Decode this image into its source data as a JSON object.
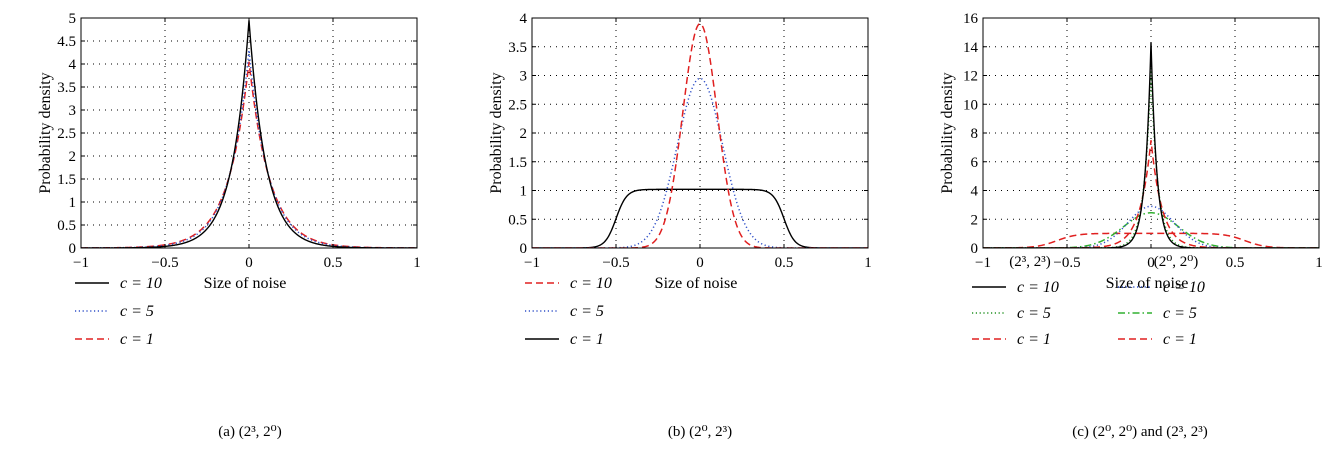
{
  "chart_data": [
    {
      "type": "line",
      "caption": "(a)  (2³, 2⁰)",
      "xlabel": "Size of noise",
      "ylabel": "Probability density",
      "xlim": [
        -1,
        1
      ],
      "ylim": [
        0,
        5
      ],
      "xticks": [
        -1,
        -0.5,
        0,
        0.5,
        1
      ],
      "xtick_labels": [
        "−1",
        "−0.5",
        "0",
        "0.5",
        "1"
      ],
      "yticks": [
        0,
        0.5,
        1,
        1.5,
        2,
        2.5,
        3,
        3.5,
        4,
        4.5,
        5
      ],
      "ytick_labels": [
        "0",
        "0.5",
        "1",
        "1.5",
        "2",
        "2.5",
        "3",
        "3.5",
        "4",
        "4.5",
        "5"
      ],
      "grid": true,
      "legend_position": "below",
      "series": [
        {
          "name": "c = 10",
          "color": "#000000",
          "style": "solid",
          "shape": "laplace",
          "peak": 4.95,
          "scale": 0.101
        },
        {
          "name": "c = 5",
          "color": "#3050c8",
          "style": "dotted",
          "shape": "laplace",
          "peak": 4.3,
          "scale": 0.116
        },
        {
          "name": "c = 1",
          "color": "#e02020",
          "style": "dashed",
          "shape": "laplace",
          "peak": 4.05,
          "scale": 0.123
        }
      ]
    },
    {
      "type": "line",
      "caption": "(b)  (2⁰, 2³)",
      "xlabel": "Size of noise",
      "ylabel": "Probability density",
      "xlim": [
        -1,
        1
      ],
      "ylim": [
        0,
        4
      ],
      "xticks": [
        -1,
        -0.5,
        0,
        0.5,
        1
      ],
      "xtick_labels": [
        "−1",
        "−0.5",
        "0",
        "0.5",
        "1"
      ],
      "yticks": [
        0,
        0.5,
        1,
        1.5,
        2,
        2.5,
        3,
        3.5,
        4
      ],
      "ytick_labels": [
        "0",
        "0.5",
        "1",
        "1.5",
        "2",
        "2.5",
        "3",
        "3.5",
        "4"
      ],
      "grid": true,
      "legend_position": "below",
      "series": [
        {
          "name": "c = 10",
          "color": "#e02020",
          "style": "dashed",
          "shape": "gauss",
          "peak": 3.9,
          "sigma": 0.102
        },
        {
          "name": "c = 5",
          "color": "#3050c8",
          "style": "dotted",
          "shape": "gauss",
          "peak": 2.95,
          "sigma": 0.135
        },
        {
          "name": "c = 1",
          "color": "#000000",
          "style": "solid",
          "shape": "flat",
          "peak": 1.02,
          "halfwidth": 0.5,
          "edge": 0.032
        }
      ]
    },
    {
      "type": "line",
      "caption": "(c)  (2⁰, 2⁰) and (2³, 2³)",
      "xlabel": "Size of noise",
      "ylabel": "Probability density",
      "xlim": [
        -1,
        1
      ],
      "ylim": [
        0,
        16
      ],
      "xticks": [
        -1,
        -0.5,
        0,
        0.5,
        1
      ],
      "xtick_labels": [
        "−1",
        "−0.5",
        "0",
        "0.5",
        "1"
      ],
      "yticks": [
        0,
        2,
        4,
        6,
        8,
        10,
        12,
        14,
        16
      ],
      "ytick_labels": [
        "0",
        "2",
        "4",
        "6",
        "8",
        "10",
        "12",
        "14",
        "16"
      ],
      "grid": true,
      "legend_position": "below",
      "legend_groups": [
        "(2³, 2³)",
        "(2⁰, 2⁰)"
      ],
      "series": [
        {
          "group": "(2³, 2³)",
          "name": "c = 10",
          "color": "#000000",
          "style": "solid",
          "shape": "laplace",
          "peak": 14.3,
          "scale": 0.035
        },
        {
          "group": "(2³, 2³)",
          "name": "c = 5",
          "color": "#209020",
          "style": "dotted",
          "shape": "laplace",
          "peak": 12.5,
          "scale": 0.04
        },
        {
          "group": "(2³, 2³)",
          "name": "c = 1",
          "color": "#e02020",
          "style": "dashed",
          "shape": "laplace",
          "peak": 7.5,
          "scale": 0.066
        },
        {
          "group": "(2⁰, 2⁰)",
          "name": "c = 10",
          "color": "#3050c8",
          "style": "dotted",
          "shape": "gauss",
          "peak": 2.9,
          "sigma": 0.138
        },
        {
          "group": "(2⁰, 2⁰)",
          "name": "c = 5",
          "color": "#30b030",
          "style": "dashdot",
          "shape": "gauss",
          "peak": 2.45,
          "sigma": 0.163
        },
        {
          "group": "(2⁰, 2⁰)",
          "name": "c = 1",
          "color": "#e02020",
          "style": "dashed",
          "shape": "flat",
          "peak": 1.02,
          "halfwidth": 0.56,
          "edge": 0.06
        }
      ]
    }
  ]
}
